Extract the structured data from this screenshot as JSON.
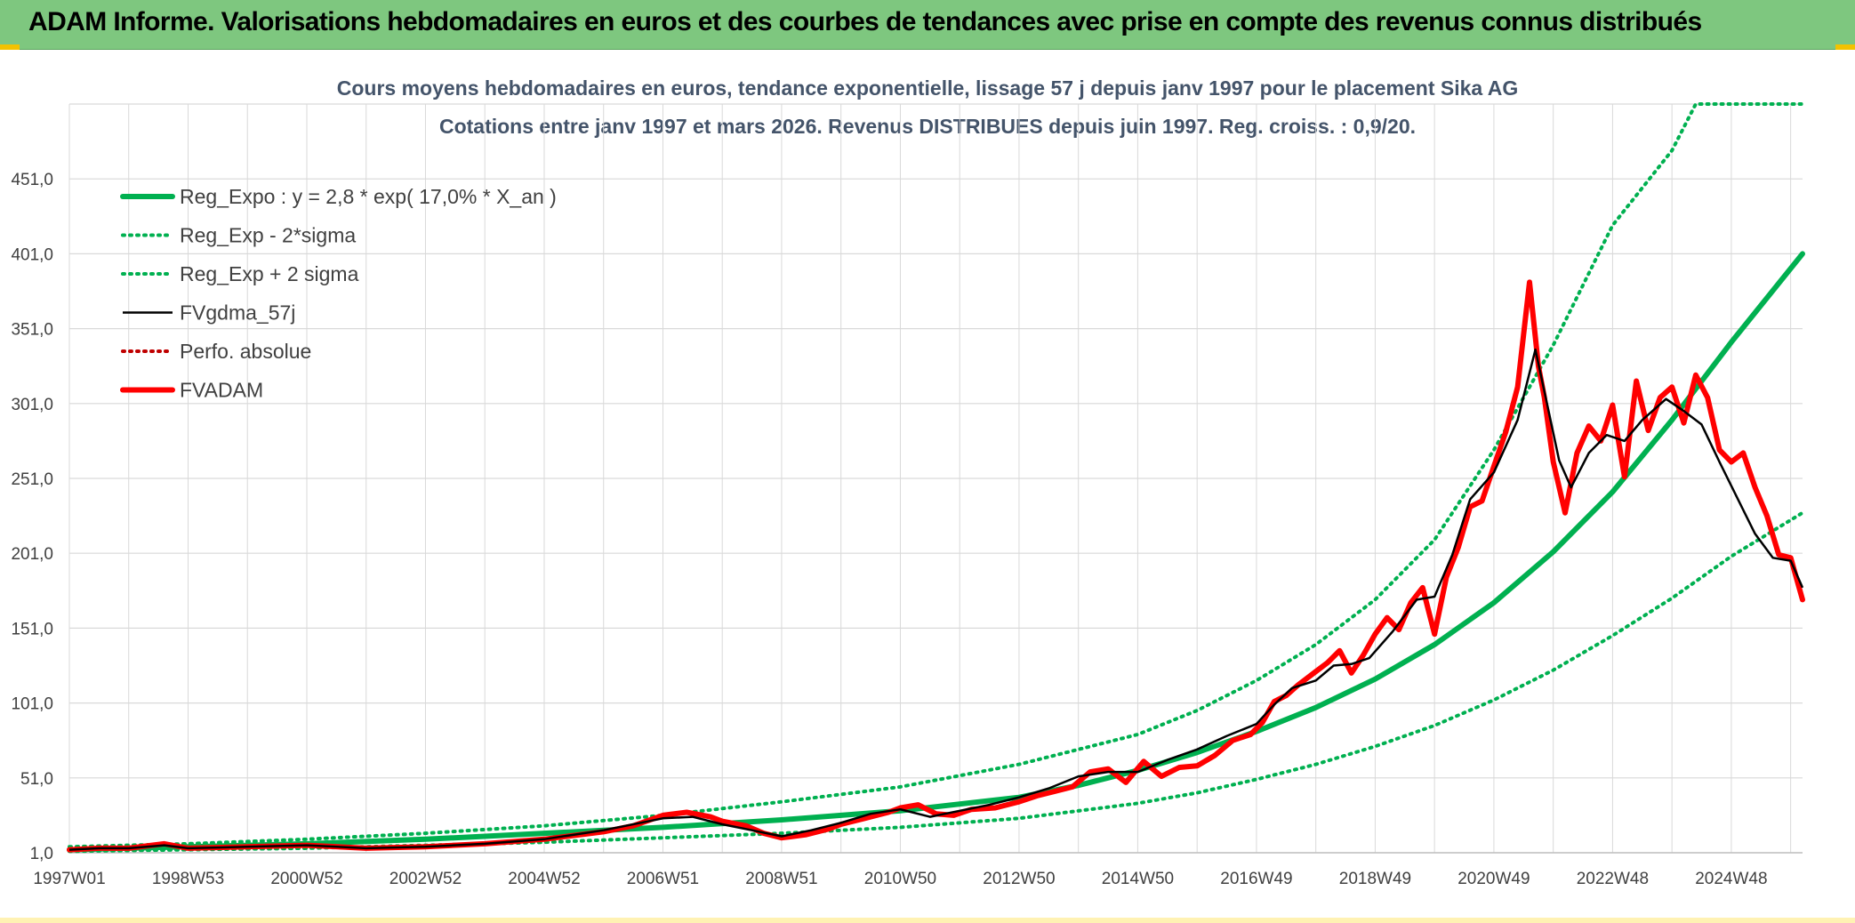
{
  "banner": {
    "title": "ADAM Informe. Valorisations hebdomadaires en euros et des courbes de tendances avec prise en compte des revenus connus distribués"
  },
  "colors": {
    "banner_bg": "#7ec77f",
    "trend": "#00b050",
    "fvgdma": "#000000",
    "fvadam": "#ff0000",
    "perfo": "#c00000",
    "grid": "#d9d9d9"
  },
  "chart_data": {
    "type": "line",
    "title": "Cours moyens hebdomadaires en euros, tendance exponentielle, lissage 57 j depuis janv 1997 pour le placement Sika AG",
    "subtitle": "Cotations entre janv 1997 et mars 2026. Revenus DISTRIBUES depuis juin 1997. Reg. croiss. : 0,9/20.",
    "xlabel": "",
    "ylabel": "",
    "x_range": [
      1997.0,
      2026.2
    ],
    "ylim": [
      1,
      501
    ],
    "grid": true,
    "legend_position": "top-left",
    "y_ticks": [
      "1,0",
      "51,0",
      "101,0",
      "151,0",
      "201,0",
      "251,0",
      "301,0",
      "351,0",
      "401,0",
      "451,0"
    ],
    "y_tick_values": [
      1,
      51,
      101,
      151,
      201,
      251,
      301,
      351,
      401,
      451
    ],
    "x_ticks": [
      "1997W01",
      "1998W53",
      "2000W52",
      "2002W52",
      "2004W52",
      "2006W51",
      "2008W51",
      "2010W50",
      "2012W50",
      "2014W50",
      "2016W49",
      "2018W49",
      "2020W49",
      "2022W48",
      "2024W48"
    ],
    "x_tick_values": [
      1997.0,
      1999.0,
      2001.0,
      2003.0,
      2005.0,
      2007.0,
      2009.0,
      2011.0,
      2013.0,
      2015.0,
      2017.0,
      2019.0,
      2021.0,
      2023.0,
      2025.0
    ],
    "series": [
      {
        "name": "Reg_Expo : y = 2,8 * exp( 17,0% *  X_an )",
        "style": "solid-thick",
        "color": "#00b050",
        "x": [
          1997.0,
          1999.0,
          2001.0,
          2003.0,
          2005.0,
          2007.0,
          2009.0,
          2011.0,
          2013.0,
          2014.0,
          2015.0,
          2016.0,
          2017.0,
          2018.0,
          2019.0,
          2020.0,
          2021.0,
          2022.0,
          2023.0,
          2024.0,
          2025.0,
          2026.2
        ],
        "y": [
          3,
          5,
          7,
          10,
          14,
          18,
          23,
          29,
          38,
          46,
          56,
          68,
          82,
          98,
          117,
          140,
          168,
          202,
          242,
          290,
          342,
          401
        ]
      },
      {
        "name": "Reg_Exp - 2*sigma",
        "style": "dotted",
        "color": "#00b050",
        "x": [
          1997.0,
          1999.0,
          2001.0,
          2003.0,
          2005.0,
          2007.0,
          2009.0,
          2011.0,
          2013.0,
          2015.0,
          2016.0,
          2017.0,
          2018.0,
          2019.0,
          2020.0,
          2021.0,
          2022.0,
          2023.0,
          2024.0,
          2025.0,
          2026.2
        ],
        "y": [
          2,
          3,
          4,
          6,
          8,
          11,
          14,
          18,
          24,
          34,
          41,
          50,
          60,
          72,
          86,
          103,
          123,
          146,
          171,
          199,
          228
        ]
      },
      {
        "name": "Reg_Exp + 2 sigma",
        "style": "dotted",
        "color": "#00b050",
        "x": [
          1997.0,
          1999.0,
          2001.0,
          2003.0,
          2005.0,
          2007.0,
          2009.0,
          2011.0,
          2013.0,
          2015.0,
          2016.0,
          2017.0,
          2018.0,
          2019.0,
          2020.0,
          2021.0,
          2022.0,
          2023.0,
          2024.0,
          2024.4,
          2025.0,
          2026.2
        ],
        "y": [
          5,
          7,
          10,
          14,
          19,
          26,
          35,
          45,
          60,
          80,
          96,
          116,
          140,
          170,
          210,
          270,
          340,
          420,
          470,
          501,
          501,
          501
        ]
      },
      {
        "name": "FVgdma_57j",
        "style": "solid",
        "color": "#000000",
        "x": [
          1997.0,
          1997.5,
          1998.0,
          1998.6,
          1999.0,
          2000.0,
          2001.0,
          2002.0,
          2003.0,
          2004.0,
          2005.0,
          2006.0,
          2007.0,
          2007.5,
          2008.0,
          2008.5,
          2009.0,
          2009.5,
          2010.0,
          2010.5,
          2011.0,
          2011.5,
          2012.0,
          2012.5,
          2013.0,
          2013.5,
          2014.0,
          2014.5,
          2015.0,
          2015.5,
          2016.0,
          2016.5,
          2017.0,
          2017.3,
          2017.6,
          2018.0,
          2018.3,
          2018.6,
          2018.9,
          2019.3,
          2019.7,
          2020.0,
          2020.3,
          2020.6,
          2021.0,
          2021.4,
          2021.7,
          2021.9,
          2022.1,
          2022.3,
          2022.6,
          2022.9,
          2023.2,
          2023.5,
          2023.9,
          2024.2,
          2024.5,
          2024.8,
          2025.1,
          2025.4,
          2025.7,
          2026.0,
          2026.2
        ],
        "y": [
          3,
          4,
          4,
          6,
          4,
          5,
          6,
          4,
          5,
          7,
          10,
          16,
          24,
          25,
          20,
          16,
          12,
          16,
          21,
          27,
          30,
          25,
          29,
          33,
          38,
          44,
          52,
          55,
          55,
          63,
          70,
          79,
          87,
          100,
          111,
          116,
          126,
          127,
          131,
          149,
          170,
          172,
          200,
          237,
          255,
          290,
          337,
          300,
          263,
          245,
          268,
          280,
          276,
          290,
          304,
          296,
          287,
          262,
          238,
          214,
          198,
          196,
          178
        ]
      },
      {
        "name": "Perfo. absolue",
        "style": "dotted",
        "color": "#c00000",
        "x": [],
        "y": []
      },
      {
        "name": "FVADAM",
        "style": "solid-thick",
        "color": "#ff0000",
        "x": [
          1997.0,
          1997.5,
          1998.0,
          1998.6,
          1999.0,
          2000.0,
          2001.0,
          2002.0,
          2003.0,
          2004.0,
          2005.0,
          2006.0,
          2006.5,
          2007.0,
          2007.4,
          2007.8,
          2008.0,
          2008.4,
          2008.7,
          2009.0,
          2009.4,
          2009.8,
          2010.0,
          2010.4,
          2010.8,
          2011.0,
          2011.3,
          2011.6,
          2011.9,
          2012.2,
          2012.6,
          2013.0,
          2013.3,
          2013.6,
          2013.9,
          2014.2,
          2014.5,
          2014.8,
          2015.1,
          2015.4,
          2015.7,
          2016.0,
          2016.3,
          2016.6,
          2016.9,
          2017.1,
          2017.3,
          2017.5,
          2017.7,
          2018.0,
          2018.2,
          2018.4,
          2018.6,
          2018.8,
          2019.0,
          2019.2,
          2019.4,
          2019.6,
          2019.8,
          2020.0,
          2020.2,
          2020.4,
          2020.6,
          2020.8,
          2021.0,
          2021.2,
          2021.4,
          2021.6,
          2021.75,
          2021.85,
          2022.0,
          2022.2,
          2022.4,
          2022.6,
          2022.8,
          2023.0,
          2023.2,
          2023.4,
          2023.6,
          2023.8,
          2024.0,
          2024.2,
          2024.4,
          2024.6,
          2024.8,
          2025.0,
          2025.2,
          2025.4,
          2025.6,
          2025.8,
          2026.0,
          2026.2
        ],
        "y": [
          3,
          4,
          4,
          7,
          4,
          5,
          6,
          4,
          5,
          7,
          10,
          15,
          19,
          26,
          28,
          25,
          22,
          19,
          14,
          11,
          13,
          17,
          20,
          24,
          28,
          31,
          33,
          27,
          26,
          30,
          31,
          35,
          39,
          42,
          45,
          55,
          57,
          48,
          62,
          52,
          58,
          59,
          66,
          76,
          80,
          88,
          102,
          106,
          113,
          122,
          128,
          136,
          121,
          133,
          147,
          158,
          150,
          168,
          178,
          147,
          185,
          205,
          232,
          236,
          259,
          282,
          312,
          382,
          326,
          305,
          262,
          228,
          268,
          286,
          276,
          300,
          252,
          316,
          283,
          305,
          312,
          288,
          320,
          305,
          270,
          262,
          268,
          245,
          226,
          200,
          198,
          170
        ]
      }
    ]
  },
  "legend": [
    {
      "label": "Reg_Expo : y = 2,8 * exp( 17,0% *  X_an )",
      "style": "solid-thick",
      "color": "#00b050"
    },
    {
      "label": "Reg_Exp - 2*sigma",
      "style": "dotted",
      "color": "#00b050"
    },
    {
      "label": "Reg_Exp + 2 sigma",
      "style": "dotted",
      "color": "#00b050"
    },
    {
      "label": "FVgdma_57j",
      "style": "solid",
      "color": "#000000"
    },
    {
      "label": "Perfo. absolue",
      "style": "dotted",
      "color": "#c00000"
    },
    {
      "label": "FVADAM",
      "style": "solid-thick",
      "color": "#ff0000"
    }
  ]
}
